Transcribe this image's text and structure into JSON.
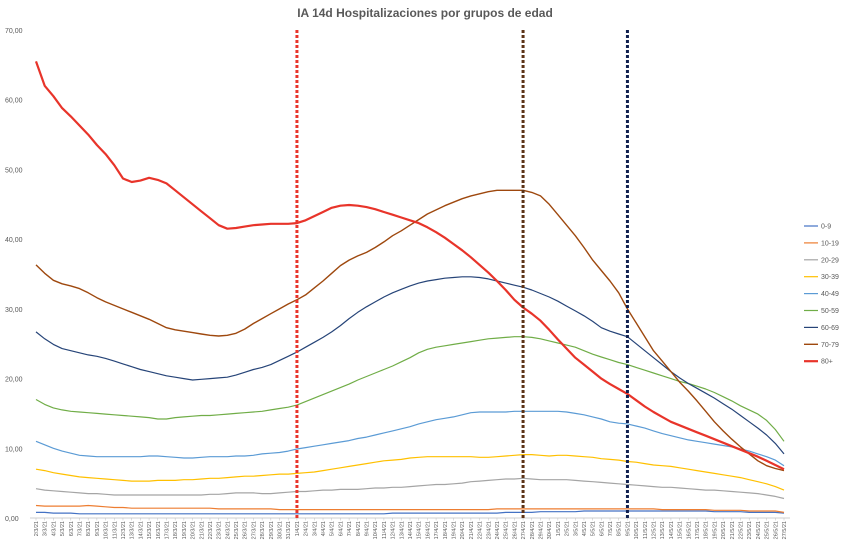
{
  "chart_data": {
    "type": "line",
    "title": "IA 14d Hospitalizaciones por grupos de edad",
    "ylim": [
      0,
      70
    ],
    "yticks": [
      "0,00",
      "10,00",
      "20,00",
      "30,00",
      "40,00",
      "50,00",
      "60,00",
      "70,00"
    ],
    "grid": false,
    "legend_position": "right",
    "x": [
      "2/3/21",
      "3/3/21",
      "4/3/21",
      "5/3/21",
      "6/3/21",
      "7/3/21",
      "8/3/21",
      "9/3/21",
      "10/3/21",
      "11/3/21",
      "12/3/21",
      "13/3/21",
      "14/3/21",
      "15/3/21",
      "16/3/21",
      "17/3/21",
      "18/3/21",
      "19/3/21",
      "20/3/21",
      "21/3/21",
      "22/3/21",
      "23/3/21",
      "24/3/21",
      "25/3/21",
      "26/3/21",
      "27/3/21",
      "28/3/21",
      "29/3/21",
      "30/3/21",
      "31/3/21",
      "1/4/21",
      "2/4/21",
      "3/4/21",
      "4/4/21",
      "5/4/21",
      "6/4/21",
      "7/4/21",
      "8/4/21",
      "9/4/21",
      "10/4/21",
      "11/4/21",
      "12/4/21",
      "13/4/21",
      "14/4/21",
      "15/4/21",
      "16/4/21",
      "17/4/21",
      "18/4/21",
      "19/4/21",
      "20/4/21",
      "21/4/21",
      "22/4/21",
      "23/4/21",
      "24/4/21",
      "25/4/21",
      "26/4/21",
      "27/4/21",
      "28/4/21",
      "29/4/21",
      "30/4/21",
      "1/5/21",
      "2/5/21",
      "3/5/21",
      "4/5/21",
      "5/5/21",
      "6/5/21",
      "7/5/21",
      "8/5/21",
      "9/5/21",
      "10/5/21",
      "11/5/21",
      "12/5/21",
      "13/5/21",
      "14/5/21",
      "15/5/21",
      "16/5/21",
      "17/5/21",
      "18/5/21",
      "19/5/21",
      "20/5/21",
      "21/5/21",
      "22/5/21",
      "23/5/21",
      "24/5/21",
      "25/5/21",
      "26/5/21",
      "27/5/21"
    ],
    "xtick_labels": [
      "2/3/21",
      "3/3/21",
      "4/3/21",
      "5/3/21",
      "6/3/21",
      "7/3/21",
      "8/3/21",
      "9/3/21",
      "10/3/21",
      "11/3/21",
      "12/3/21",
      "13/3/21",
      "14/3/21",
      "15/3/21",
      "16/3/21",
      "17/3/21",
      "18/3/21",
      "19/3/21",
      "20/3/21",
      "21/3/21",
      "22/3/21",
      "23/3/21",
      "24/3/21",
      "25/3/21",
      "26/3/21",
      "27/3/21",
      "28/3/21",
      "29/3/21",
      "30/3/21",
      "31/3/21",
      "1/4/21",
      "2/4/21",
      "3/4/21",
      "4/4/21",
      "5/4/21",
      "6/4/21",
      "7/4/21",
      "8/4/21",
      "9/4/21",
      "10/4/21",
      "11/4/21",
      "12/4/21",
      "13/4/21",
      "14/4/21",
      "15/4/21",
      "16/4/21",
      "17/4/21",
      "18/4/21",
      "19/4/21",
      "20/4/21",
      "21/4/21",
      "22/4/21",
      "23/4/21",
      "24/4/21",
      "25/4/21",
      "26/4/21",
      "27/4/21",
      "28/4/21",
      "29/4/21",
      "30/4/21",
      "1/5/21",
      "2/5/21",
      "3/5/21",
      "4/5/21",
      "5/5/21",
      "6/5/21",
      "7/5/21",
      "8/5/21",
      "9/5/21",
      "10/5/21",
      "11/5/21",
      "12/5/21",
      "13/5/21",
      "14/5/21",
      "15/5/21",
      "16/5/21",
      "17/5/21",
      "18/5/21",
      "19/5/21",
      "20/5/21",
      "21/5/21",
      "22/5/21",
      "23/5/21",
      "24/5/21",
      "25/5/21",
      "26/5/21",
      "27/5/21"
    ],
    "reference_lines": [
      {
        "x": "1/4/21",
        "color": "#e8342a"
      },
      {
        "x": "27/4/21",
        "color": "#5c3317"
      },
      {
        "x": "9/5/21",
        "color": "#0f1f4f"
      }
    ],
    "series": [
      {
        "name": "0-9",
        "color": "#4472c4",
        "width": 1.2,
        "values": [
          0.8,
          0.8,
          0.7,
          0.7,
          0.7,
          0.6,
          0.6,
          0.6,
          0.6,
          0.6,
          0.6,
          0.6,
          0.6,
          0.6,
          0.6,
          0.6,
          0.6,
          0.6,
          0.6,
          0.6,
          0.6,
          0.6,
          0.6,
          0.6,
          0.6,
          0.6,
          0.6,
          0.6,
          0.6,
          0.6,
          0.6,
          0.6,
          0.6,
          0.6,
          0.6,
          0.6,
          0.6,
          0.6,
          0.6,
          0.6,
          0.6,
          0.7,
          0.7,
          0.7,
          0.7,
          0.7,
          0.7,
          0.7,
          0.7,
          0.7,
          0.7,
          0.7,
          0.7,
          0.7,
          0.8,
          0.8,
          0.8,
          0.8,
          0.9,
          0.9,
          0.9,
          0.9,
          0.9,
          1.0,
          1.0,
          1.0,
          1.0,
          1.0,
          1.0,
          1.0,
          1.0,
          1.0,
          1.0,
          1.0,
          1.0,
          1.0,
          1.0,
          1.0,
          0.9,
          0.9,
          0.9,
          0.9,
          0.8,
          0.8,
          0.8,
          0.8,
          0.7
        ]
      },
      {
        "name": "10-19",
        "color": "#ed7d31",
        "width": 1.2,
        "values": [
          1.8,
          1.7,
          1.7,
          1.7,
          1.7,
          1.7,
          1.8,
          1.7,
          1.6,
          1.5,
          1.5,
          1.4,
          1.4,
          1.4,
          1.4,
          1.4,
          1.4,
          1.4,
          1.4,
          1.4,
          1.4,
          1.3,
          1.3,
          1.3,
          1.3,
          1.3,
          1.3,
          1.3,
          1.2,
          1.2,
          1.2,
          1.2,
          1.2,
          1.2,
          1.2,
          1.2,
          1.2,
          1.2,
          1.2,
          1.2,
          1.2,
          1.2,
          1.2,
          1.2,
          1.2,
          1.2,
          1.2,
          1.2,
          1.2,
          1.2,
          1.2,
          1.2,
          1.2,
          1.3,
          1.3,
          1.3,
          1.3,
          1.3,
          1.3,
          1.3,
          1.3,
          1.3,
          1.3,
          1.3,
          1.3,
          1.3,
          1.3,
          1.3,
          1.3,
          1.3,
          1.3,
          1.3,
          1.2,
          1.2,
          1.2,
          1.2,
          1.2,
          1.2,
          1.1,
          1.1,
          1.1,
          1.1,
          1.0,
          1.0,
          1.0,
          1.0,
          0.8
        ]
      },
      {
        "name": "20-29",
        "color": "#a5a5a5",
        "width": 1.2,
        "values": [
          4.2,
          4.0,
          3.9,
          3.8,
          3.7,
          3.6,
          3.5,
          3.5,
          3.4,
          3.3,
          3.3,
          3.3,
          3.3,
          3.3,
          3.3,
          3.3,
          3.3,
          3.3,
          3.3,
          3.3,
          3.4,
          3.4,
          3.5,
          3.6,
          3.6,
          3.6,
          3.5,
          3.5,
          3.6,
          3.7,
          3.8,
          3.8,
          3.9,
          4.0,
          4.0,
          4.1,
          4.1,
          4.1,
          4.2,
          4.3,
          4.3,
          4.4,
          4.4,
          4.5,
          4.6,
          4.7,
          4.8,
          4.8,
          4.9,
          5.0,
          5.2,
          5.3,
          5.4,
          5.5,
          5.6,
          5.6,
          5.7,
          5.6,
          5.5,
          5.5,
          5.5,
          5.5,
          5.4,
          5.3,
          5.2,
          5.1,
          5.0,
          4.9,
          4.8,
          4.7,
          4.6,
          4.5,
          4.4,
          4.4,
          4.3,
          4.2,
          4.1,
          4.0,
          4.0,
          3.9,
          3.8,
          3.7,
          3.6,
          3.5,
          3.3,
          3.1,
          2.8
        ]
      },
      {
        "name": "30-39",
        "color": "#ffc000",
        "width": 1.2,
        "values": [
          7.0,
          6.8,
          6.5,
          6.3,
          6.1,
          5.9,
          5.8,
          5.7,
          5.6,
          5.5,
          5.4,
          5.3,
          5.3,
          5.3,
          5.4,
          5.4,
          5.4,
          5.5,
          5.5,
          5.6,
          5.7,
          5.7,
          5.8,
          5.9,
          6.0,
          6.0,
          6.1,
          6.2,
          6.3,
          6.3,
          6.4,
          6.5,
          6.6,
          6.8,
          7.0,
          7.2,
          7.4,
          7.6,
          7.8,
          8.0,
          8.2,
          8.3,
          8.4,
          8.6,
          8.7,
          8.8,
          8.8,
          8.8,
          8.8,
          8.8,
          8.8,
          8.7,
          8.7,
          8.8,
          8.9,
          9.0,
          9.1,
          9.1,
          9.0,
          8.9,
          9.0,
          9.0,
          8.9,
          8.8,
          8.7,
          8.5,
          8.4,
          8.3,
          8.1,
          8.0,
          7.8,
          7.6,
          7.5,
          7.4,
          7.2,
          7.0,
          6.8,
          6.6,
          6.4,
          6.2,
          6.0,
          5.8,
          5.5,
          5.2,
          4.9,
          4.5,
          4.0
        ]
      },
      {
        "name": "40-49",
        "color": "#5b9bd5",
        "width": 1.2,
        "values": [
          11.0,
          10.5,
          10.0,
          9.6,
          9.3,
          9.0,
          8.9,
          8.8,
          8.8,
          8.8,
          8.8,
          8.8,
          8.8,
          8.9,
          8.9,
          8.8,
          8.7,
          8.6,
          8.6,
          8.7,
          8.8,
          8.8,
          8.8,
          8.9,
          8.9,
          9.0,
          9.2,
          9.3,
          9.4,
          9.6,
          9.9,
          10.1,
          10.3,
          10.5,
          10.7,
          10.9,
          11.1,
          11.4,
          11.6,
          11.9,
          12.2,
          12.5,
          12.8,
          13.1,
          13.5,
          13.8,
          14.1,
          14.3,
          14.5,
          14.8,
          15.1,
          15.2,
          15.2,
          15.2,
          15.2,
          15.3,
          15.3,
          15.3,
          15.3,
          15.3,
          15.3,
          15.2,
          15.0,
          14.8,
          14.5,
          14.2,
          13.8,
          13.6,
          13.5,
          13.2,
          12.9,
          12.5,
          12.1,
          11.8,
          11.5,
          11.2,
          11.0,
          10.8,
          10.6,
          10.4,
          10.2,
          9.9,
          9.6,
          9.2,
          8.8,
          8.3,
          7.5
        ]
      },
      {
        "name": "50-59",
        "color": "#70ad47",
        "width": 1.2,
        "values": [
          17.0,
          16.3,
          15.8,
          15.5,
          15.3,
          15.2,
          15.1,
          15.0,
          14.9,
          14.8,
          14.7,
          14.6,
          14.5,
          14.4,
          14.2,
          14.2,
          14.4,
          14.5,
          14.6,
          14.7,
          14.7,
          14.8,
          14.9,
          15.0,
          15.1,
          15.2,
          15.3,
          15.5,
          15.7,
          15.9,
          16.2,
          16.7,
          17.2,
          17.7,
          18.2,
          18.7,
          19.2,
          19.8,
          20.3,
          20.8,
          21.3,
          21.8,
          22.4,
          23.0,
          23.7,
          24.2,
          24.5,
          24.7,
          24.9,
          25.1,
          25.3,
          25.5,
          25.7,
          25.8,
          25.9,
          26.0,
          26.0,
          25.9,
          25.7,
          25.4,
          25.1,
          24.8,
          24.5,
          24.0,
          23.5,
          23.1,
          22.7,
          22.3,
          22.0,
          21.6,
          21.2,
          20.8,
          20.4,
          20.0,
          19.6,
          19.3,
          18.9,
          18.5,
          18.0,
          17.4,
          16.8,
          16.1,
          15.5,
          14.9,
          14.0,
          12.7,
          11.0
        ]
      },
      {
        "name": "60-69",
        "color": "#264478",
        "width": 1.2,
        "values": [
          26.7,
          25.7,
          24.9,
          24.3,
          24.0,
          23.7,
          23.4,
          23.2,
          22.9,
          22.5,
          22.1,
          21.7,
          21.3,
          21.0,
          20.7,
          20.4,
          20.2,
          20.0,
          19.8,
          19.9,
          20.0,
          20.1,
          20.2,
          20.5,
          20.9,
          21.3,
          21.6,
          22.0,
          22.6,
          23.2,
          23.8,
          24.5,
          25.2,
          25.9,
          26.7,
          27.6,
          28.6,
          29.5,
          30.3,
          31.0,
          31.7,
          32.3,
          32.8,
          33.3,
          33.7,
          34.0,
          34.2,
          34.4,
          34.5,
          34.6,
          34.6,
          34.5,
          34.3,
          34.0,
          33.7,
          33.4,
          33.1,
          32.7,
          32.2,
          31.7,
          31.1,
          30.4,
          29.7,
          29.0,
          28.2,
          27.3,
          26.8,
          26.4,
          26.0,
          25.0,
          24.0,
          23.0,
          22.0,
          21.0,
          20.1,
          19.3,
          18.6,
          17.9,
          17.2,
          16.4,
          15.6,
          14.7,
          13.8,
          12.9,
          11.9,
          10.7,
          9.2
        ]
      },
      {
        "name": "70-79",
        "color": "#9e480e",
        "width": 1.4,
        "values": [
          36.3,
          35.1,
          34.1,
          33.6,
          33.3,
          32.9,
          32.3,
          31.6,
          31.0,
          30.5,
          30.0,
          29.5,
          29.0,
          28.5,
          27.9,
          27.3,
          27.0,
          26.8,
          26.6,
          26.4,
          26.2,
          26.1,
          26.2,
          26.5,
          27.1,
          27.9,
          28.6,
          29.3,
          30.0,
          30.7,
          31.3,
          32.0,
          33.0,
          34.0,
          35.1,
          36.2,
          37.0,
          37.6,
          38.1,
          38.8,
          39.6,
          40.5,
          41.2,
          42.0,
          42.8,
          43.6,
          44.2,
          44.8,
          45.3,
          45.8,
          46.2,
          46.5,
          46.8,
          47.0,
          47.0,
          47.0,
          47.0,
          46.7,
          46.2,
          45.0,
          43.5,
          42.0,
          40.5,
          38.8,
          37.0,
          35.5,
          34.0,
          32.3,
          30.0,
          28.0,
          26.0,
          24.0,
          22.5,
          21.0,
          19.5,
          18.2,
          16.8,
          15.3,
          13.8,
          12.5,
          11.3,
          10.2,
          9.2,
          8.2,
          7.5,
          7.1,
          6.8
        ]
      },
      {
        "name": "80+",
        "color": "#e8342a",
        "width": 2.2,
        "values": [
          65.5,
          62.0,
          60.5,
          58.8,
          57.6,
          56.3,
          55.0,
          53.5,
          52.2,
          50.6,
          48.7,
          48.2,
          48.4,
          48.8,
          48.5,
          48.0,
          47.0,
          46.0,
          45.0,
          44.0,
          43.0,
          42.0,
          41.5,
          41.6,
          41.8,
          42.0,
          42.1,
          42.2,
          42.2,
          42.2,
          42.3,
          42.7,
          43.3,
          43.9,
          44.5,
          44.8,
          44.9,
          44.8,
          44.6,
          44.3,
          43.9,
          43.5,
          43.1,
          42.7,
          42.3,
          41.7,
          41.0,
          40.2,
          39.3,
          38.4,
          37.4,
          36.3,
          35.2,
          34.0,
          32.7,
          31.3,
          30.2,
          29.3,
          28.3,
          27.0,
          25.6,
          24.3,
          23.0,
          22.0,
          21.0,
          20.0,
          19.2,
          18.5,
          17.8,
          16.9,
          16.0,
          15.2,
          14.5,
          13.8,
          13.3,
          12.8,
          12.3,
          11.8,
          11.3,
          10.8,
          10.3,
          9.8,
          9.3,
          8.8,
          8.2,
          7.6,
          7.0
        ]
      }
    ]
  }
}
